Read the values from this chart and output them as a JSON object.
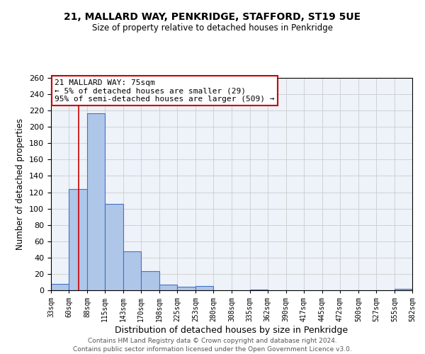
{
  "title1": "21, MALLARD WAY, PENKRIDGE, STAFFORD, ST19 5UE",
  "title2": "Size of property relative to detached houses in Penkridge",
  "xlabel": "Distribution of detached houses by size in Penkridge",
  "ylabel": "Number of detached properties",
  "footer1": "Contains HM Land Registry data © Crown copyright and database right 2024.",
  "footer2": "Contains public sector information licensed under the Open Government Licence v3.0.",
  "bin_edges": [
    33,
    60,
    88,
    115,
    143,
    170,
    198,
    225,
    253,
    280,
    308,
    335,
    362,
    390,
    417,
    445,
    472,
    500,
    527,
    555,
    582
  ],
  "bin_counts": [
    8,
    124,
    217,
    106,
    48,
    23,
    7,
    4,
    5,
    0,
    0,
    1,
    0,
    0,
    0,
    0,
    0,
    0,
    0,
    2
  ],
  "bar_color": "#aec6e8",
  "bar_edge_color": "#4472c4",
  "property_size": 75,
  "vline_color": "#cc0000",
  "annotation_title": "21 MALLARD WAY: 75sqm",
  "annotation_line1": "← 5% of detached houses are smaller (29)",
  "annotation_line2": "95% of semi-detached houses are larger (509) →",
  "annotation_box_edge": "#cc0000",
  "ylim": [
    0,
    260
  ],
  "yticks": [
    0,
    20,
    40,
    60,
    80,
    100,
    120,
    140,
    160,
    180,
    200,
    220,
    240,
    260
  ]
}
